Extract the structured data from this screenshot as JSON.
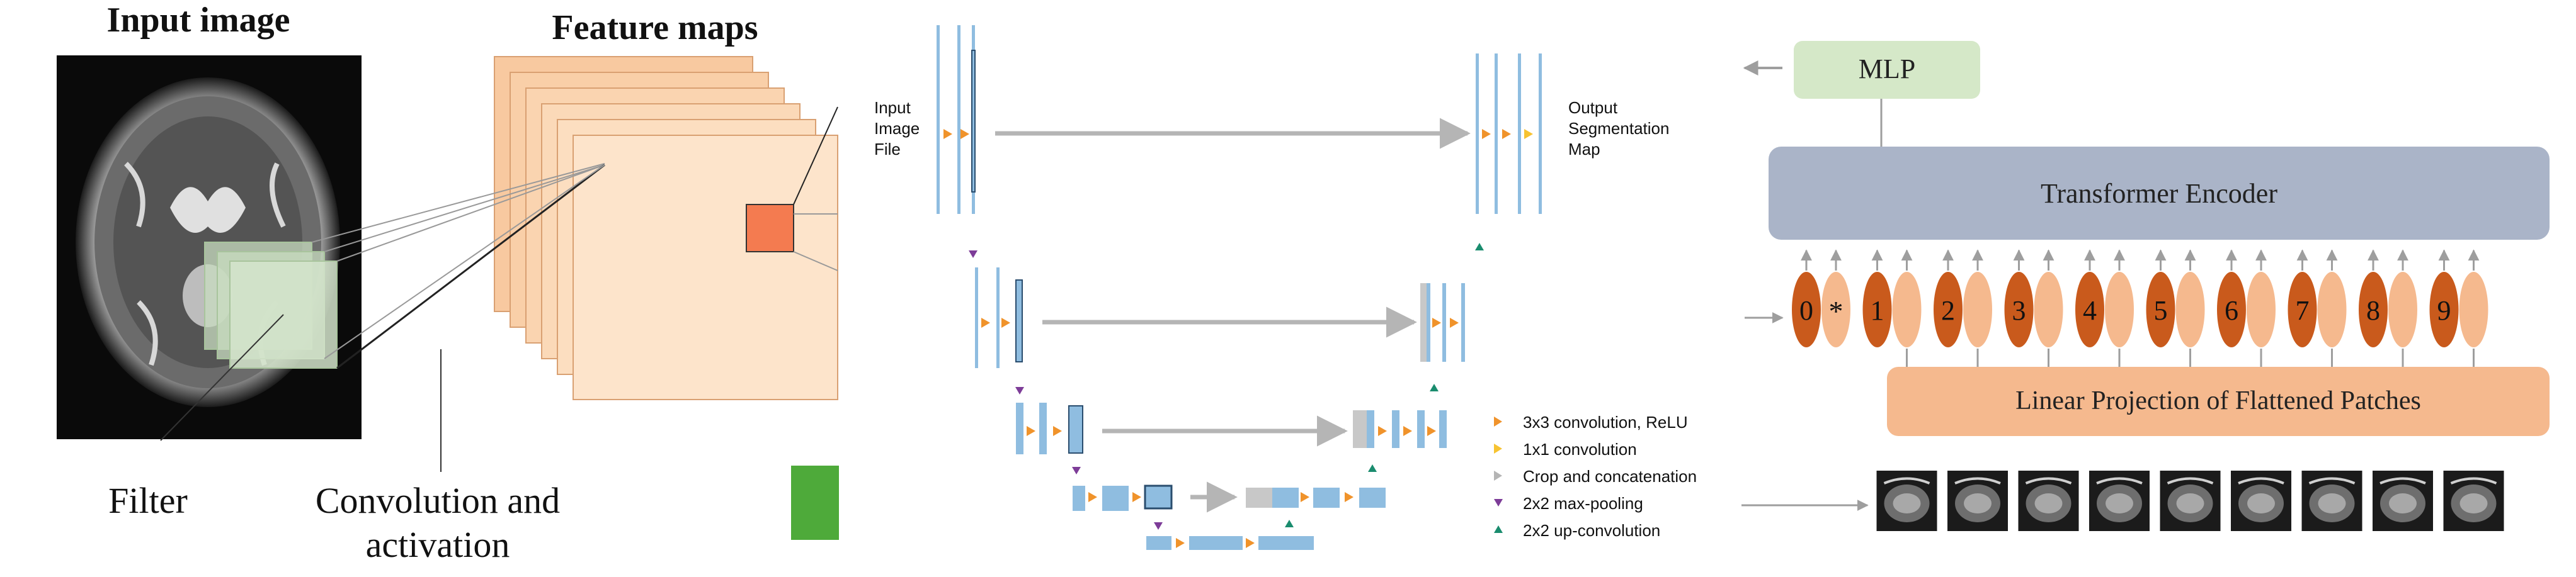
{
  "cnn": {
    "input_title": "Input image",
    "feature_title": "Feature maps",
    "filter_label": "Filter",
    "conv_label_line1": "Convolution and",
    "conv_label_line2": "activation"
  },
  "unet": {
    "input_label": [
      "Input",
      "Image",
      "File"
    ],
    "output_label": [
      "Output",
      "Segmentation",
      "Map"
    ],
    "legend": [
      {
        "label": "3x3 convolution, ReLU",
        "color": "#f0932b"
      },
      {
        "label": "1x1 convolution",
        "color": "#f7c331"
      },
      {
        "label": "Crop and concatenation",
        "color": "#b5b5b5"
      },
      {
        "label": "2x2 max-pooling",
        "color": "#7d3c98"
      },
      {
        "label": "2x2 up-convolution",
        "color": "#1a8c6e"
      }
    ]
  },
  "vit": {
    "mlp_label": "MLP",
    "encoder_label": "Transformer Encoder",
    "projection_label": "Linear Projection of Flattened Patches",
    "position_tokens": [
      "0",
      "1",
      "2",
      "3",
      "4",
      "5",
      "6",
      "7",
      "8",
      "9"
    ],
    "class_token": "*"
  },
  "colors": {
    "mlp": "#d5e8c8",
    "encoder": "#aab4c8",
    "projection": "#f5b98e",
    "token_dark": "#c95a1c",
    "token_light": "#f5b98e",
    "unet_bar": "#8fbde0",
    "green_block": "#4eaa3a"
  }
}
